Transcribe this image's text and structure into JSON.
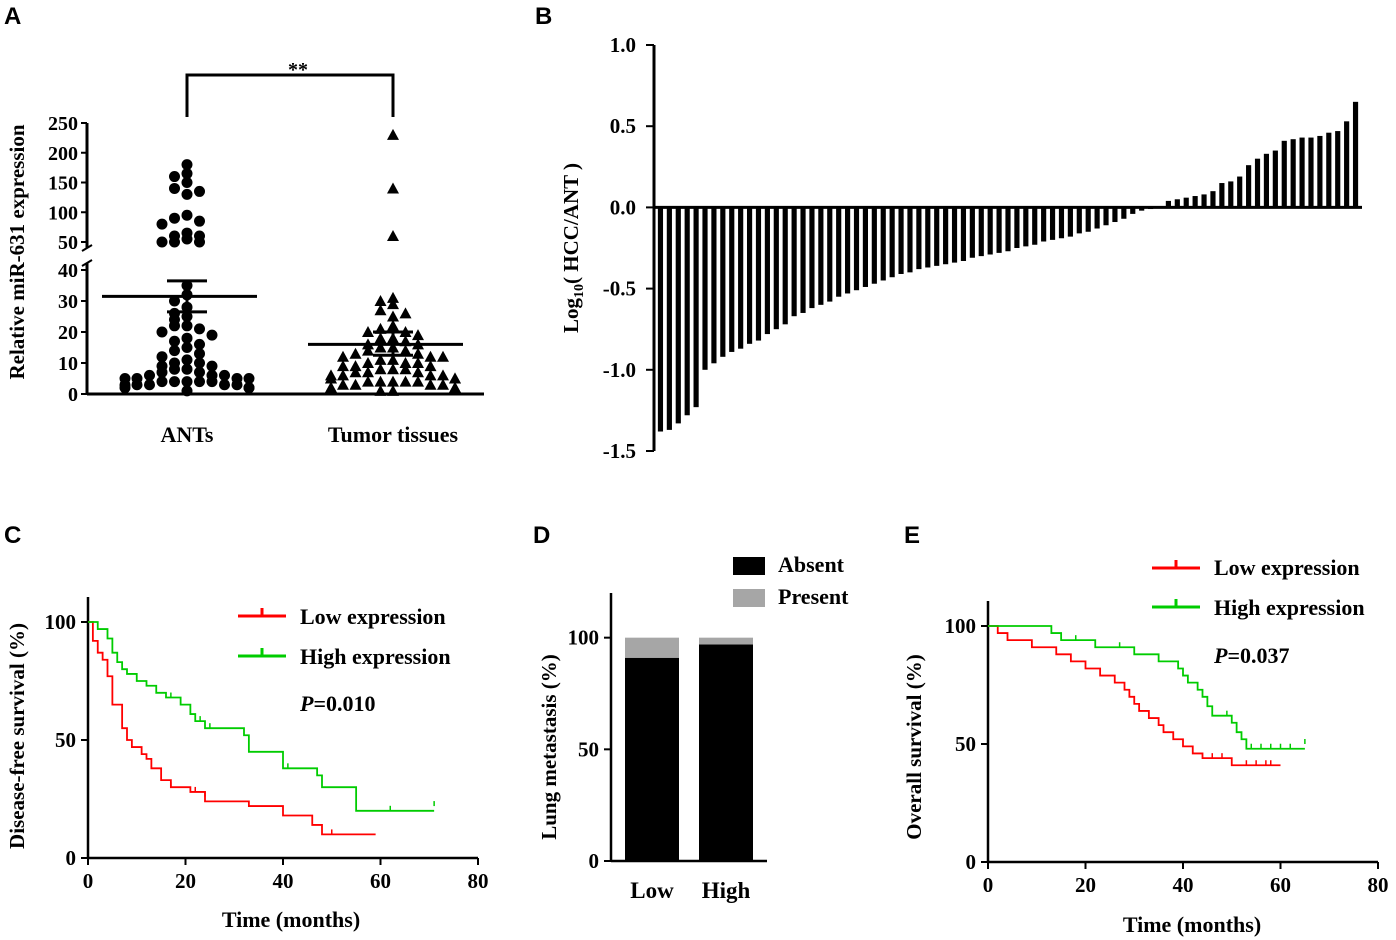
{
  "colors": {
    "axis": "#000000",
    "low": "#ff0000",
    "high": "#00cc00",
    "absent": "#000000",
    "present": "#a6a6a6"
  },
  "chart_data": [
    {
      "panel": "A",
      "type": "scatter",
      "title": "",
      "panel_label": "A",
      "ylabel": "Relative miR-631 expression",
      "categories": [
        "ANTs",
        "Tumor tissues"
      ],
      "yticks_lower": [
        "0",
        "10",
        "20",
        "30",
        "40"
      ],
      "yticks_upper": [
        "50",
        "100",
        "150",
        "200",
        "250"
      ],
      "ylim_lower": [
        0,
        40
      ],
      "ylim_upper": [
        50,
        250
      ],
      "significance": "**",
      "series": [
        {
          "name": "ANTs",
          "marker": "circle",
          "mean": 31.5,
          "sem_low": 26.5,
          "sem_high": 36.5,
          "values": [
            180,
            165,
            160,
            150,
            140,
            135,
            130,
            95,
            90,
            85,
            80,
            65,
            60,
            60,
            55,
            50,
            50,
            50,
            35,
            32,
            30,
            28,
            26,
            25,
            24,
            22,
            22,
            21,
            20,
            19,
            18,
            17,
            16,
            15,
            14,
            13,
            12,
            11,
            10,
            10,
            9,
            9,
            8,
            8,
            7,
            7,
            6,
            6,
            6,
            5,
            5,
            5,
            5,
            4,
            4,
            4,
            4,
            4,
            3,
            3,
            3,
            3,
            3,
            2,
            2,
            2,
            1
          ]
        },
        {
          "name": "Tumor tissues",
          "marker": "triangle",
          "mean": 16,
          "sem_low": 12.5,
          "sem_high": 20,
          "values": [
            230,
            140,
            60,
            31,
            30,
            29,
            27,
            26,
            25,
            22,
            21,
            20,
            20,
            19,
            18,
            18,
            17,
            16,
            16,
            15,
            15,
            14,
            14,
            13,
            13,
            12,
            12,
            12,
            11,
            11,
            10,
            10,
            10,
            9,
            9,
            9,
            8,
            8,
            8,
            7,
            7,
            7,
            6,
            6,
            6,
            6,
            5,
            5,
            5,
            5,
            4,
            4,
            4,
            4,
            4,
            3,
            3,
            3,
            3,
            2,
            2,
            2,
            2,
            1,
            1
          ]
        }
      ]
    },
    {
      "panel": "B",
      "type": "bar",
      "panel_label": "B",
      "ylabel": "Log10 ( HCC/ANT )",
      "ylim": [
        -1.5,
        1.0
      ],
      "yticks": [
        "1.0",
        "0.5",
        "0.0",
        "-0.5",
        "-1.0",
        "-1.5"
      ],
      "values": [
        -1.38,
        -1.37,
        -1.33,
        -1.28,
        -1.23,
        -1.0,
        -0.96,
        -0.92,
        -0.89,
        -0.87,
        -0.84,
        -0.82,
        -0.78,
        -0.75,
        -0.72,
        -0.67,
        -0.65,
        -0.62,
        -0.6,
        -0.58,
        -0.55,
        -0.53,
        -0.51,
        -0.49,
        -0.47,
        -0.45,
        -0.43,
        -0.41,
        -0.4,
        -0.38,
        -0.37,
        -0.36,
        -0.35,
        -0.34,
        -0.33,
        -0.31,
        -0.3,
        -0.29,
        -0.28,
        -0.27,
        -0.25,
        -0.24,
        -0.23,
        -0.21,
        -0.2,
        -0.19,
        -0.18,
        -0.16,
        -0.15,
        -0.13,
        -0.11,
        -0.09,
        -0.07,
        -0.04,
        -0.02,
        -0.01,
        0.0,
        0.04,
        0.05,
        0.06,
        0.07,
        0.08,
        0.1,
        0.15,
        0.16,
        0.19,
        0.26,
        0.3,
        0.33,
        0.35,
        0.41,
        0.42,
        0.43,
        0.43,
        0.44,
        0.46,
        0.47,
        0.53,
        0.65
      ]
    },
    {
      "panel": "C",
      "type": "line",
      "subtype": "kaplan-meier",
      "panel_label": "C",
      "xlabel": "Time (months)",
      "ylabel": "Disease-free survival (%)",
      "xlim": [
        0,
        80
      ],
      "ylim": [
        0,
        100
      ],
      "xticks": [
        "0",
        "20",
        "40",
        "60",
        "80"
      ],
      "yticks": [
        "0",
        "50",
        "100"
      ],
      "p_value_prefix": "P",
      "p_value": "=0.010",
      "legend": [
        "Low expression",
        "High expression"
      ],
      "series": [
        {
          "name": "Low expression",
          "color": "#ff0000",
          "steps": [
            [
              0,
              100
            ],
            [
              1,
              92
            ],
            [
              2,
              87
            ],
            [
              3,
              84
            ],
            [
              4,
              77
            ],
            [
              5,
              65
            ],
            [
              7,
              55
            ],
            [
              8,
              50
            ],
            [
              9,
              47
            ],
            [
              11,
              44
            ],
            [
              12,
              42
            ],
            [
              13,
              38
            ],
            [
              15,
              33
            ],
            [
              17,
              30
            ],
            [
              21,
              28
            ],
            [
              24,
              24
            ],
            [
              33,
              22
            ],
            [
              40,
              18
            ],
            [
              46,
              14
            ],
            [
              48,
              10
            ],
            [
              59,
              10
            ]
          ],
          "censors": [
            [
              17,
              30
            ],
            [
              22,
              28
            ],
            [
              24,
              26
            ],
            [
              50,
              10
            ]
          ]
        },
        {
          "name": "High expression",
          "color": "#00cc00",
          "steps": [
            [
              0,
              100
            ],
            [
              2,
              97
            ],
            [
              4,
              93
            ],
            [
              5,
              87
            ],
            [
              6,
              83
            ],
            [
              7,
              80
            ],
            [
              8,
              78
            ],
            [
              10,
              75
            ],
            [
              12,
              73
            ],
            [
              14,
              70
            ],
            [
              16,
              68
            ],
            [
              19,
              65
            ],
            [
              21,
              61
            ],
            [
              22,
              58
            ],
            [
              24,
              55
            ],
            [
              32,
              52
            ],
            [
              33,
              45
            ],
            [
              40,
              38
            ],
            [
              47,
              35
            ],
            [
              48,
              30
            ],
            [
              55,
              20
            ],
            [
              71,
              20
            ]
          ],
          "censors": [
            [
              17,
              68
            ],
            [
              23,
              58
            ],
            [
              25,
              55
            ],
            [
              41,
              38
            ],
            [
              62,
              20
            ],
            [
              71,
              22
            ]
          ]
        }
      ]
    },
    {
      "panel": "D",
      "type": "bar",
      "subtype": "stacked",
      "panel_label": "D",
      "ylabel": "Lung metastasis (%)",
      "ylim": [
        0,
        120
      ],
      "yticks": [
        "0",
        "50",
        "100"
      ],
      "categories": [
        "Low",
        "High"
      ],
      "legend": [
        "Absent",
        "Present"
      ],
      "series": [
        {
          "name": "Absent",
          "color": "#000000",
          "values": [
            91,
            97
          ]
        },
        {
          "name": "Present",
          "color": "#a6a6a6",
          "values": [
            9,
            3
          ]
        }
      ]
    },
    {
      "panel": "E",
      "type": "line",
      "subtype": "kaplan-meier",
      "panel_label": "E",
      "xlabel": "Time (months)",
      "ylabel": "Overall survival (%)",
      "xlim": [
        0,
        80
      ],
      "ylim": [
        0,
        100
      ],
      "xticks": [
        "0",
        "20",
        "40",
        "60",
        "80"
      ],
      "yticks": [
        "0",
        "50",
        "100"
      ],
      "p_value_prefix": "P",
      "p_value": "=0.037",
      "legend": [
        "Low expression",
        "High expression"
      ],
      "series": [
        {
          "name": "Low expression",
          "color": "#ff0000",
          "steps": [
            [
              0,
              100
            ],
            [
              2,
              97
            ],
            [
              4,
              94
            ],
            [
              9,
              91
            ],
            [
              14,
              88
            ],
            [
              17,
              85
            ],
            [
              20,
              82
            ],
            [
              23,
              79
            ],
            [
              26,
              76
            ],
            [
              28,
              73
            ],
            [
              29,
              70
            ],
            [
              30,
              67
            ],
            [
              31,
              64
            ],
            [
              33,
              61
            ],
            [
              35,
              58
            ],
            [
              36,
              55
            ],
            [
              38,
              52
            ],
            [
              40,
              49
            ],
            [
              42,
              46
            ],
            [
              44,
              44
            ],
            [
              50,
              41
            ],
            [
              60,
              41
            ]
          ],
          "censors": [
            [
              46,
              44
            ],
            [
              48,
              44
            ],
            [
              53,
              41
            ],
            [
              55,
              41
            ],
            [
              57,
              41
            ],
            [
              58,
              41
            ]
          ]
        },
        {
          "name": "High expression",
          "color": "#00cc00",
          "steps": [
            [
              0,
              100
            ],
            [
              13,
              97
            ],
            [
              15,
              94
            ],
            [
              22,
              91
            ],
            [
              30,
              88
            ],
            [
              35,
              85
            ],
            [
              39,
              82
            ],
            [
              40,
              79
            ],
            [
              41,
              76
            ],
            [
              43,
              73
            ],
            [
              44,
              70
            ],
            [
              45,
              66
            ],
            [
              46,
              62
            ],
            [
              50,
              59
            ],
            [
              51,
              55
            ],
            [
              52,
              52
            ],
            [
              53,
              48
            ],
            [
              65,
              48
            ]
          ],
          "censors": [
            [
              18,
              94
            ],
            [
              27,
              91
            ],
            [
              49,
              62
            ],
            [
              54,
              48
            ],
            [
              56,
              48
            ],
            [
              58,
              48
            ],
            [
              60,
              48
            ],
            [
              62,
              48
            ],
            [
              65,
              50
            ]
          ]
        }
      ]
    }
  ]
}
